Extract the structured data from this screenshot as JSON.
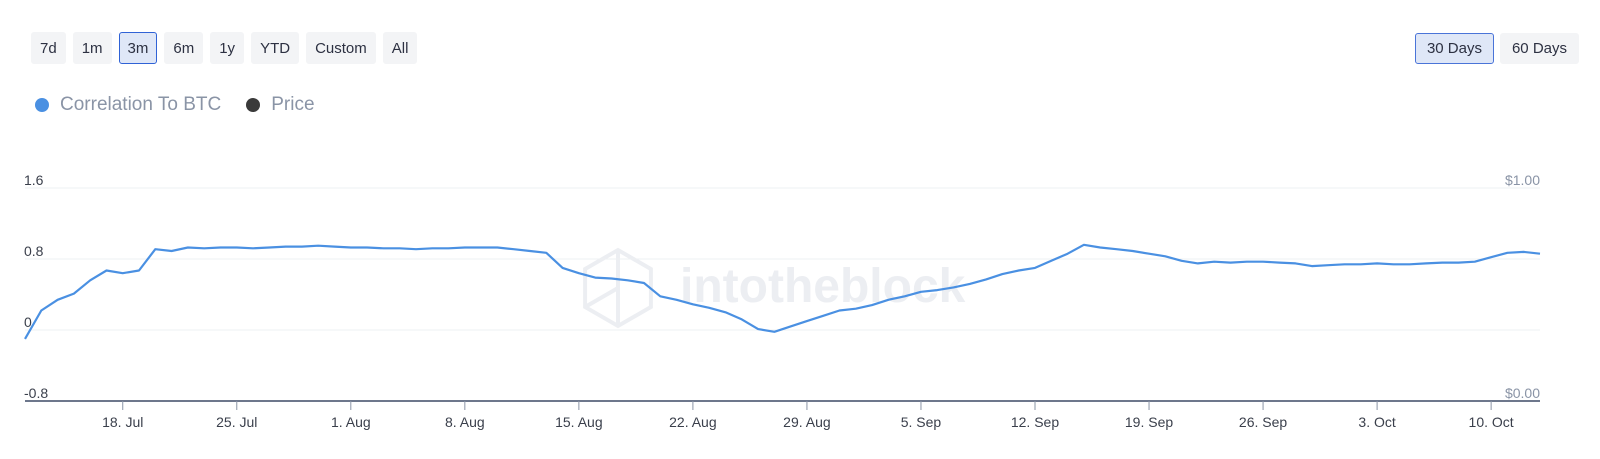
{
  "range_buttons": [
    "7d",
    "1m",
    "3m",
    "6m",
    "1y",
    "YTD",
    "Custom",
    "All"
  ],
  "active_range": "3m",
  "window_buttons": [
    "30 Days",
    "60 Days"
  ],
  "active_window": "30 Days",
  "legend": [
    {
      "label": "Correlation To BTC",
      "color": "#4a90e2"
    },
    {
      "label": "Price",
      "color": "#3a3a3a"
    }
  ],
  "watermark": "intotheblock",
  "chart_data": {
    "type": "line",
    "x_ticks": [
      "18. Jul",
      "25. Jul",
      "1. Aug",
      "8. Aug",
      "15. Aug",
      "22. Aug",
      "29. Aug",
      "5. Sep",
      "12. Sep",
      "19. Sep",
      "26. Sep",
      "3. Oct",
      "10. Oct"
    ],
    "y_left_ticks": [
      "1.6",
      "0.8",
      "0",
      "-0.8"
    ],
    "y_left_range": [
      -0.8,
      1.6
    ],
    "y_right_ticks": [
      "$1.00",
      "$0.00"
    ],
    "y_right_range": [
      0,
      1
    ],
    "grid": true,
    "legend_position": "top-left",
    "series": [
      {
        "name": "Correlation To BTC",
        "color": "#4a90e2",
        "x": [
          "2022-07-12",
          "2022-07-13",
          "2022-07-14",
          "2022-07-15",
          "2022-07-16",
          "2022-07-17",
          "2022-07-18",
          "2022-07-19",
          "2022-07-20",
          "2022-07-21",
          "2022-07-22",
          "2022-07-23",
          "2022-07-24",
          "2022-07-25",
          "2022-07-26",
          "2022-07-27",
          "2022-07-28",
          "2022-07-29",
          "2022-07-30",
          "2022-07-31",
          "2022-08-01",
          "2022-08-02",
          "2022-08-03",
          "2022-08-04",
          "2022-08-05",
          "2022-08-06",
          "2022-08-07",
          "2022-08-08",
          "2022-08-09",
          "2022-08-10",
          "2022-08-11",
          "2022-08-12",
          "2022-08-13",
          "2022-08-14",
          "2022-08-15",
          "2022-08-16",
          "2022-08-17",
          "2022-08-18",
          "2022-08-19",
          "2022-08-20",
          "2022-08-21",
          "2022-08-22",
          "2022-08-23",
          "2022-08-24",
          "2022-08-25",
          "2022-08-26",
          "2022-08-27",
          "2022-08-28",
          "2022-08-29",
          "2022-08-30",
          "2022-08-31",
          "2022-09-01",
          "2022-09-02",
          "2022-09-03",
          "2022-09-04",
          "2022-09-05",
          "2022-09-06",
          "2022-09-07",
          "2022-09-08",
          "2022-09-09",
          "2022-09-10",
          "2022-09-11",
          "2022-09-12",
          "2022-09-13",
          "2022-09-14",
          "2022-09-15",
          "2022-09-16",
          "2022-09-17",
          "2022-09-18",
          "2022-09-19",
          "2022-09-20",
          "2022-09-21",
          "2022-09-22",
          "2022-09-23",
          "2022-09-24",
          "2022-09-25",
          "2022-09-26",
          "2022-09-27",
          "2022-09-28",
          "2022-09-29",
          "2022-09-30",
          "2022-10-01",
          "2022-10-02",
          "2022-10-03",
          "2022-10-04",
          "2022-10-05",
          "2022-10-06",
          "2022-10-07",
          "2022-10-08",
          "2022-10-09",
          "2022-10-10",
          "2022-10-11",
          "2022-10-12",
          "2022-10-13"
        ],
        "y": [
          -0.1,
          0.22,
          0.34,
          0.41,
          0.56,
          0.67,
          0.64,
          0.67,
          0.91,
          0.89,
          0.93,
          0.92,
          0.93,
          0.93,
          0.92,
          0.93,
          0.94,
          0.94,
          0.95,
          0.94,
          0.93,
          0.93,
          0.92,
          0.92,
          0.91,
          0.92,
          0.92,
          0.93,
          0.93,
          0.93,
          0.91,
          0.89,
          0.87,
          0.7,
          0.64,
          0.59,
          0.58,
          0.56,
          0.53,
          0.38,
          0.34,
          0.29,
          0.25,
          0.2,
          0.12,
          0.01,
          -0.02,
          0.04,
          0.1,
          0.16,
          0.22,
          0.24,
          0.28,
          0.34,
          0.38,
          0.43,
          0.45,
          0.48,
          0.52,
          0.57,
          0.63,
          0.67,
          0.7,
          0.78,
          0.86,
          0.96,
          0.93,
          0.91,
          0.89,
          0.86,
          0.83,
          0.78,
          0.75,
          0.77,
          0.76,
          0.77,
          0.77,
          0.76,
          0.75,
          0.72,
          0.73,
          0.74,
          0.74,
          0.75,
          0.74,
          0.74,
          0.75,
          0.76,
          0.76,
          0.77,
          0.82,
          0.87,
          0.88,
          0.86
        ]
      }
    ]
  }
}
